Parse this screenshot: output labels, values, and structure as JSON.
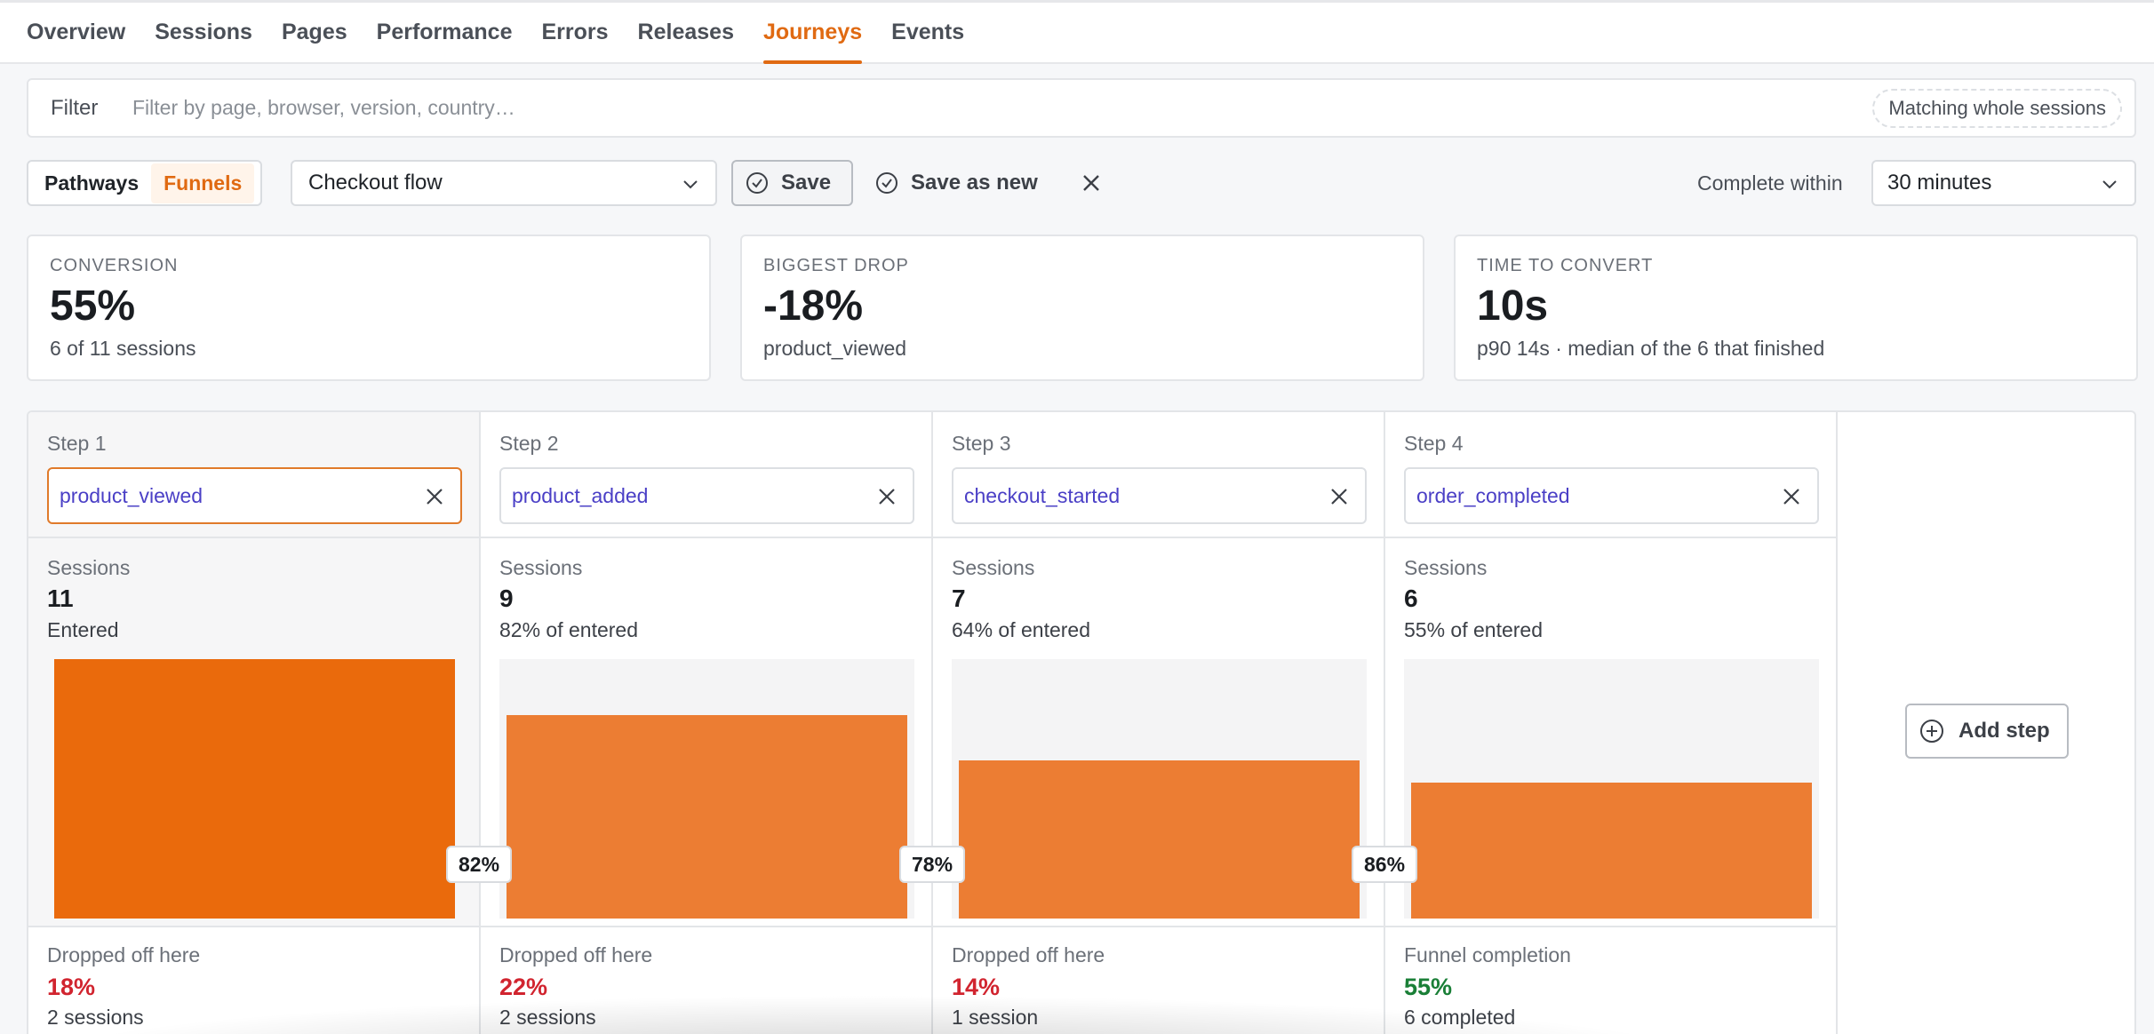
{
  "nav": {
    "tabs": [
      {
        "label": "Overview"
      },
      {
        "label": "Sessions"
      },
      {
        "label": "Pages"
      },
      {
        "label": "Performance"
      },
      {
        "label": "Errors"
      },
      {
        "label": "Releases"
      },
      {
        "label": "Journeys",
        "active": true
      },
      {
        "label": "Events"
      }
    ]
  },
  "filter": {
    "label": "Filter",
    "placeholder": "Filter by page, browser, version, country…",
    "value": "",
    "match_mode": "Matching whole sessions"
  },
  "toolbar": {
    "mode_pathways": "Pathways",
    "mode_funnels": "Funnels",
    "selected_mode": "Funnels",
    "flow": "Checkout flow",
    "save": "Save",
    "save_as_new": "Save as new",
    "complete_within_label": "Complete within",
    "complete_within_value": "30 minutes"
  },
  "metrics": {
    "conversion": {
      "title": "Conversion",
      "value": "55%",
      "sub": "6 of 11 sessions"
    },
    "biggest_drop": {
      "title": "Biggest drop",
      "value": "-18%",
      "sub": "product_viewed"
    },
    "time_to_convert": {
      "title": "Time to convert",
      "value": "10s",
      "sub": "p90 14s · median of the 6 that finished"
    }
  },
  "funnel": {
    "sessions_label": "Sessions",
    "add_step": "Add step",
    "steps": [
      {
        "label": "Step 1",
        "event": "product_viewed",
        "sessions": 11,
        "sub": "Entered",
        "foot_label": "Dropped off here",
        "foot_value": "18%",
        "foot_sub": "2 sessions",
        "foot_color": "red"
      },
      {
        "label": "Step 2",
        "event": "product_added",
        "sessions": 9,
        "sub": "82% of entered",
        "foot_label": "Dropped off here",
        "foot_value": "22%",
        "foot_sub": "2 sessions",
        "foot_color": "red"
      },
      {
        "label": "Step 3",
        "event": "checkout_started",
        "sessions": 7,
        "sub": "64% of entered",
        "foot_label": "Dropped off here",
        "foot_value": "14%",
        "foot_sub": "1 session",
        "foot_color": "red"
      },
      {
        "label": "Step 4",
        "event": "order_completed",
        "sessions": 6,
        "sub": "55% of entered",
        "foot_label": "Funnel completion",
        "foot_value": "55%",
        "foot_sub": "6 completed",
        "foot_color": "green"
      }
    ],
    "step_conversions": [
      "82%",
      "78%",
      "86%"
    ],
    "max_sessions": 11
  },
  "colors": {
    "accent": "#e06a12",
    "bar_primary": "#ea6a0c",
    "bar": "#ec7d33",
    "drop": "#d1242f",
    "completion": "#1a7f37",
    "event_text": "#4a3fc6"
  }
}
